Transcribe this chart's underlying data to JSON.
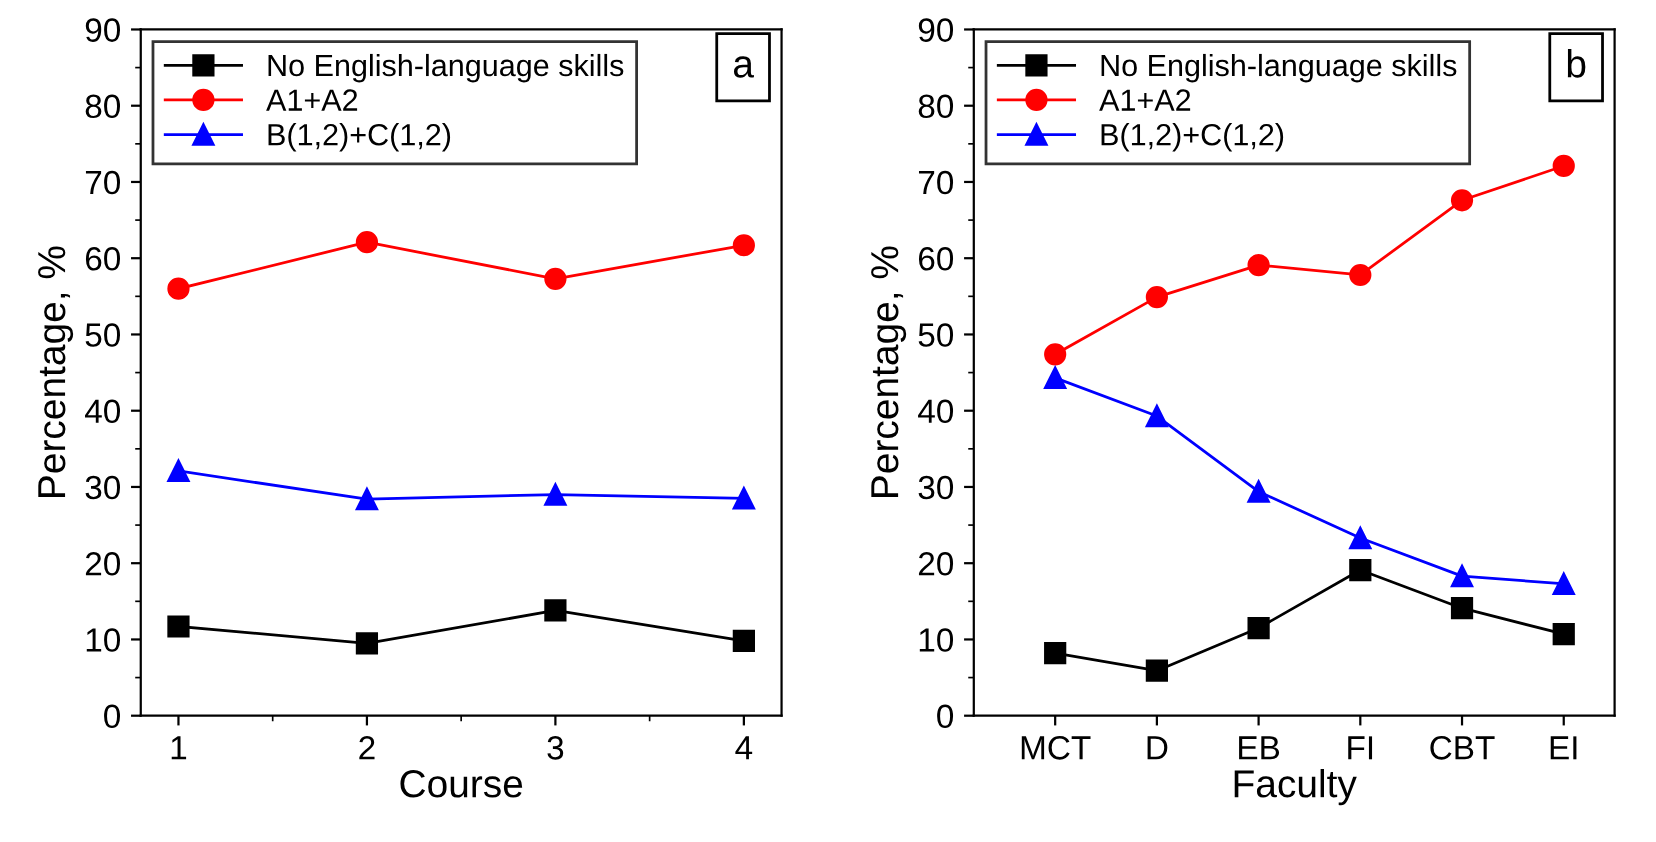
{
  "chart_data": [
    {
      "type": "line",
      "xlabel": "Course",
      "ylabel": "Percentage, %",
      "x": [
        1,
        2,
        3,
        4
      ],
      "xlim": [
        0.8,
        4.2
      ],
      "xticks": [
        1,
        2,
        3,
        4
      ],
      "ylim": [
        0,
        90
      ],
      "yticks": [
        0,
        10,
        20,
        30,
        40,
        50,
        60,
        70,
        80,
        90
      ],
      "legend": "top left",
      "grid": false,
      "annotations": [
        "a"
      ],
      "series": [
        {
          "name": "No English-language skills",
          "color": "#000000",
          "marker": "square",
          "values": [
            11.7,
            9.5,
            13.8,
            9.8
          ]
        },
        {
          "name": "A1+A2",
          "color": "#ff0000",
          "marker": "circle",
          "values": [
            56.0,
            62.1,
            57.3,
            61.7
          ]
        },
        {
          "name": "B(1,2)+C(1,2)",
          "color": "#0000ff",
          "marker": "triangle",
          "values": [
            32.1,
            28.4,
            29.0,
            28.5
          ]
        }
      ]
    },
    {
      "type": "line",
      "xlabel": "Faculty",
      "ylabel": "Percentage, %",
      "categories": [
        "MCT",
        "D",
        "EB",
        "FI",
        "CBT",
        "EI"
      ],
      "ylim": [
        0,
        90
      ],
      "yticks": [
        0,
        10,
        20,
        30,
        40,
        50,
        60,
        70,
        80,
        90
      ],
      "legend": "top left",
      "grid": false,
      "annotations": [
        "b"
      ],
      "series": [
        {
          "name": "No English-language skills",
          "color": "#000000",
          "marker": "square",
          "values": [
            8.2,
            5.9,
            11.5,
            19.1,
            14.1,
            10.7
          ]
        },
        {
          "name": "A1+A2",
          "color": "#ff0000",
          "marker": "circle",
          "values": [
            47.4,
            54.9,
            59.1,
            57.8,
            67.6,
            72.1
          ]
        },
        {
          "name": "B(1,2)+C(1,2)",
          "color": "#0000ff",
          "marker": "triangle",
          "values": [
            44.3,
            39.3,
            29.4,
            23.3,
            18.3,
            17.3
          ]
        }
      ]
    }
  ]
}
